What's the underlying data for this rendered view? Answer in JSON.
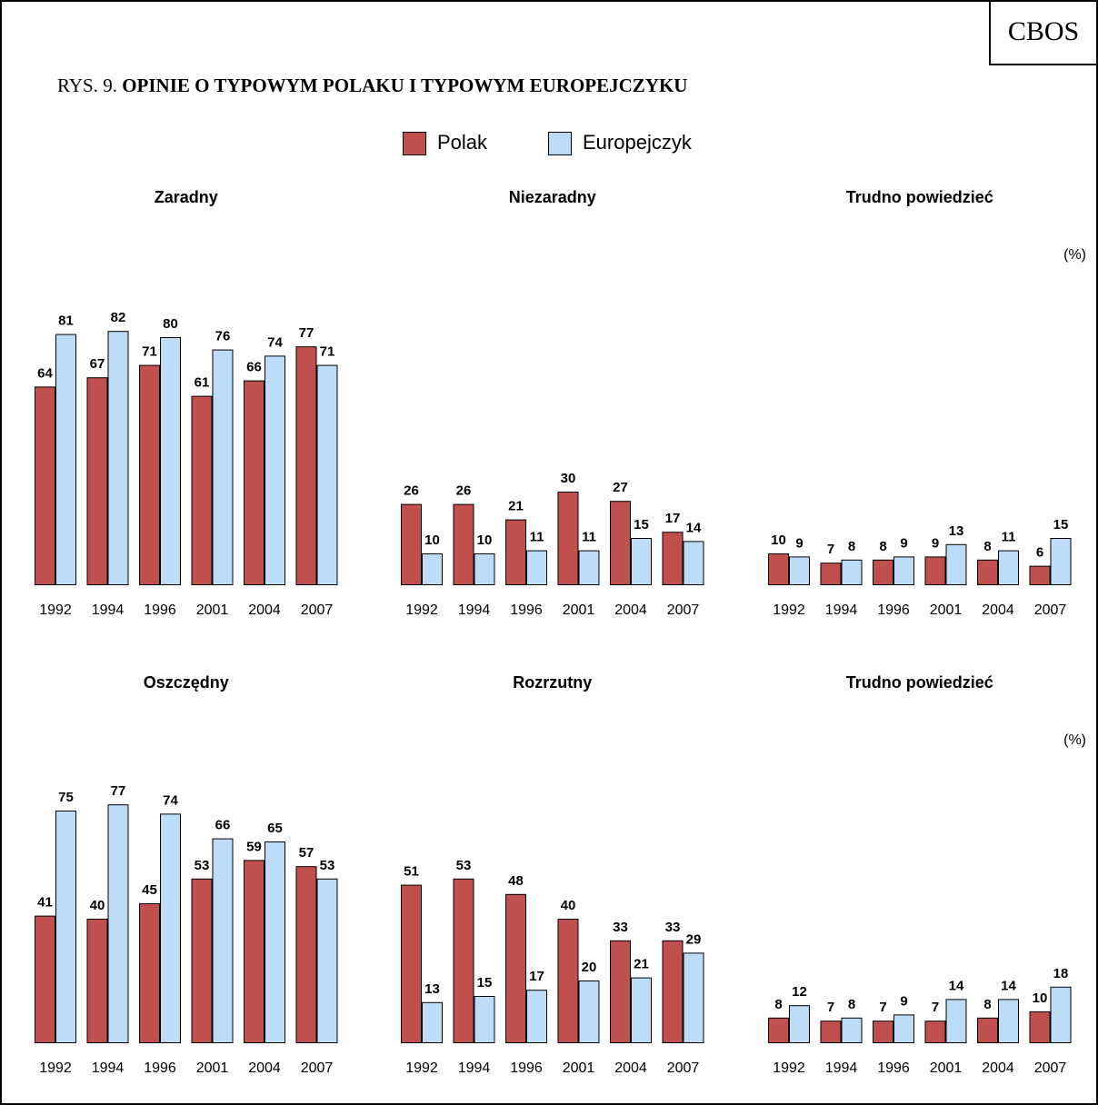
{
  "brand": "CBOS",
  "figure": {
    "prefix": "RYS. 9.",
    "title": "OPINIE O TYPOWYM POLAKU I TYPOWYM EUROPEJCZYKU"
  },
  "legend": [
    {
      "label": "Polak",
      "color": "#C0504D"
    },
    {
      "label": "Europejczyk",
      "color": "#BDDCF8"
    }
  ],
  "colors": {
    "polak": "#C0504D",
    "europejczyk": "#BDDCF8",
    "outline": "#000000"
  },
  "chart_data": [
    {
      "type": "bar",
      "title": "Zaradny",
      "unit": "",
      "categories": [
        "1992",
        "1994",
        "1996",
        "2001",
        "2004",
        "2007"
      ],
      "series": [
        {
          "name": "Polak",
          "values": [
            64,
            67,
            71,
            61,
            66,
            77
          ]
        },
        {
          "name": "Europejczyk",
          "values": [
            81,
            82,
            80,
            76,
            74,
            71
          ]
        }
      ]
    },
    {
      "type": "bar",
      "title": "Niezaradny",
      "unit": "",
      "categories": [
        "1992",
        "1994",
        "1996",
        "2001",
        "2004",
        "2007"
      ],
      "series": [
        {
          "name": "Polak",
          "values": [
            26,
            26,
            21,
            30,
            27,
            17
          ]
        },
        {
          "name": "Europejczyk",
          "values": [
            10,
            10,
            11,
            11,
            15,
            14
          ]
        }
      ]
    },
    {
      "type": "bar",
      "title": "Trudno powiedzieć",
      "unit": "(%)",
      "categories": [
        "1992",
        "1994",
        "1996",
        "2001",
        "2004",
        "2007"
      ],
      "series": [
        {
          "name": "Polak",
          "values": [
            10,
            7,
            8,
            9,
            8,
            6
          ]
        },
        {
          "name": "Europejczyk",
          "values": [
            9,
            8,
            9,
            13,
            11,
            15
          ]
        }
      ]
    },
    {
      "type": "bar",
      "title": "Oszczędny",
      "unit": "",
      "categories": [
        "1992",
        "1994",
        "1996",
        "2001",
        "2004",
        "2007"
      ],
      "series": [
        {
          "name": "Polak",
          "values": [
            41,
            40,
            45,
            53,
            59,
            57
          ]
        },
        {
          "name": "Europejczyk",
          "values": [
            75,
            77,
            74,
            66,
            65,
            53
          ]
        }
      ]
    },
    {
      "type": "bar",
      "title": "Rozrzutny",
      "unit": "",
      "categories": [
        "1992",
        "1994",
        "1996",
        "2001",
        "2004",
        "2007"
      ],
      "series": [
        {
          "name": "Polak",
          "values": [
            51,
            53,
            48,
            40,
            33,
            33
          ]
        },
        {
          "name": "Europejczyk",
          "values": [
            13,
            15,
            17,
            20,
            21,
            29
          ]
        }
      ]
    },
    {
      "type": "bar",
      "title": "Trudno powiedzieć",
      "unit": "(%)",
      "categories": [
        "1992",
        "1994",
        "1996",
        "2001",
        "2004",
        "2007"
      ],
      "series": [
        {
          "name": "Polak",
          "values": [
            8,
            7,
            7,
            7,
            8,
            10
          ]
        },
        {
          "name": "Europejczyk",
          "values": [
            12,
            8,
            9,
            14,
            14,
            18
          ]
        }
      ]
    }
  ]
}
